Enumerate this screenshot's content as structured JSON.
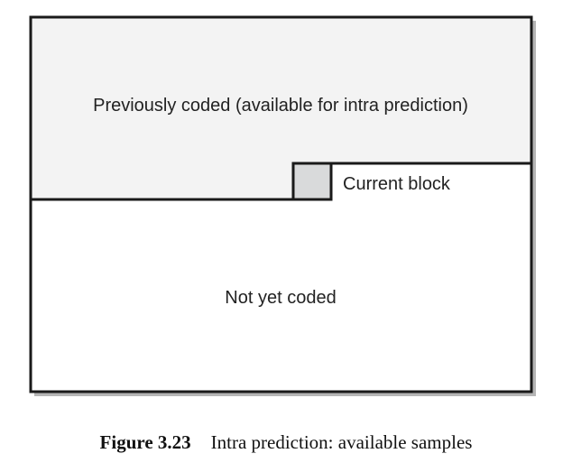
{
  "diagram": {
    "regions": {
      "previously_coded": "Previously coded (available for intra prediction)",
      "current_block": "Current block",
      "not_yet_coded": "Not yet coded"
    },
    "colors": {
      "previously_coded_fill": "#f3f3f3",
      "current_block_fill": "#d9dadb",
      "not_yet_coded_fill": "#ffffff",
      "stroke": "#1a1a1a",
      "shadow": "#b5b5b5"
    }
  },
  "caption": {
    "number": "Figure 3.23",
    "text": "Intra prediction: available samples"
  }
}
